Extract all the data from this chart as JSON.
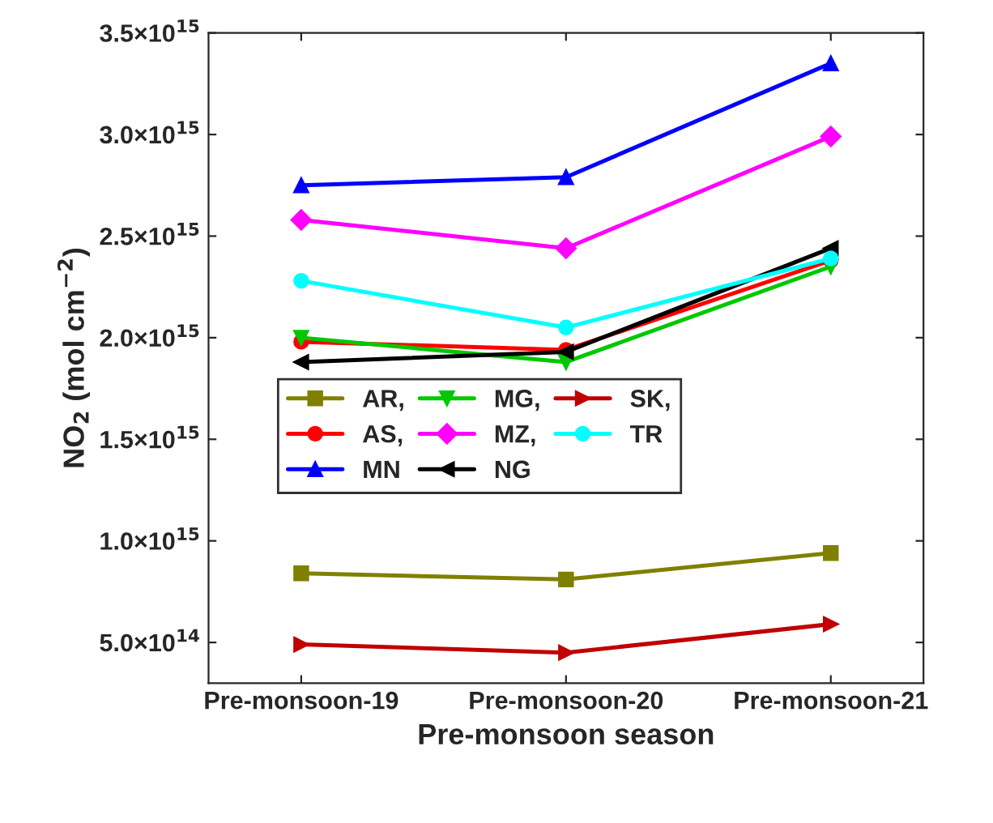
{
  "chart_data": {
    "type": "line",
    "xlabel": "Pre-monsoon season",
    "ylabel": "NO$_{2}$ (mol cm$^{−2}$)",
    "categories": [
      "Pre-monsoon-19",
      "Pre-monsoon-20",
      "Pre-monsoon-21"
    ],
    "ylim": [
      300000000000000.0,
      3500000000000000.0
    ],
    "yticks": [
      {
        "value": 500000000000000.0,
        "label": "5.0×10$^{14}$"
      },
      {
        "value": 1000000000000000.0,
        "label": "1.0×10$^{15}$"
      },
      {
        "value": 1500000000000000.0,
        "label": "1.5×10$^{15}$"
      },
      {
        "value": 2000000000000000.0,
        "label": "2.0×10$^{15}$"
      },
      {
        "value": 2500000000000000.0,
        "label": "2.5×10$^{15}$"
      },
      {
        "value": 3000000000000000.0,
        "label": "3.0×10$^{15}$"
      },
      {
        "value": 3500000000000000.0,
        "label": "3.5×10$^{15}$"
      }
    ],
    "legend": "center left",
    "grid": false,
    "line_style": "solid",
    "series": [
      {
        "name": "AR,",
        "color": "#808000",
        "marker": "square",
        "values": [
          840000000000000.0,
          810000000000000.0,
          940000000000000.0
        ]
      },
      {
        "name": "AS,",
        "color": "#ff0000",
        "marker": "circle",
        "values": [
          1980000000000000.0,
          1940000000000000.0,
          2380000000000000.0
        ]
      },
      {
        "name": "MN",
        "color": "#0000ff",
        "marker": "triangle",
        "values": [
          2750000000000000.0,
          2790000000000000.0,
          3350000000000000.0
        ]
      },
      {
        "name": "MG,",
        "color": "#00c800",
        "marker": "triangle_down",
        "values": [
          2000000000000000.0,
          1880000000000000.0,
          2350000000000000.0
        ]
      },
      {
        "name": "MZ,",
        "color": "#ff00ff",
        "marker": "diamond",
        "values": [
          2580000000000000.0,
          2440000000000000.0,
          2990000000000000.0
        ]
      },
      {
        "name": "NG",
        "color": "#000000",
        "marker": "triangle_left",
        "values": [
          1880000000000000.0,
          1930000000000000.0,
          2440000000000000.0
        ]
      },
      {
        "name": "SK,",
        "color": "#c00000",
        "marker": "triangle_right",
        "values": [
          490000000000000.0,
          450000000000000.0,
          590000000000000.0
        ]
      },
      {
        "name": "TR",
        "color": "#00ffff",
        "marker": "circle",
        "values": [
          2280000000000000.0,
          2050000000000000.0,
          2390000000000000.0
        ]
      }
    ]
  }
}
